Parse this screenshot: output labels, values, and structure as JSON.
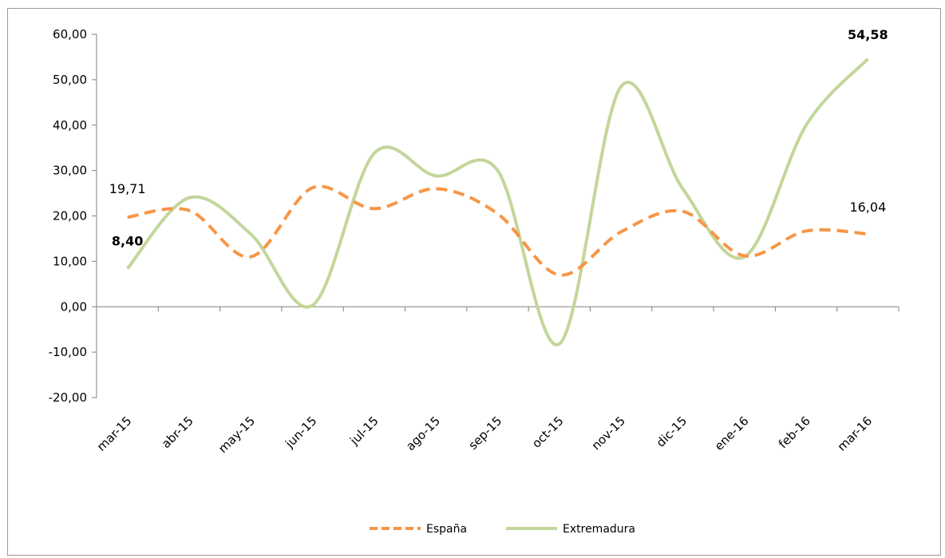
{
  "chart_data": {
    "type": "line",
    "title": "",
    "xlabel": "",
    "ylabel": "",
    "ylim": [
      -20,
      60
    ],
    "yticks": [
      "60,00",
      "50,00",
      "40,00",
      "30,00",
      "20,00",
      "10,00",
      "0,00",
      "-10,00",
      "-20,00"
    ],
    "ytick_values": [
      60,
      50,
      40,
      30,
      20,
      10,
      0,
      -10,
      -20
    ],
    "categories": [
      "mar-15",
      "abr-15",
      "may-15",
      "jun-15",
      "jul-15",
      "ago-15",
      "sep-15",
      "oct-15",
      "nov-15",
      "dic-15",
      "ene-16",
      "feb-16",
      "mar-16"
    ],
    "series": [
      {
        "name": "España",
        "color": "#F79646",
        "style": "dashed",
        "values": [
          19.71,
          21.2,
          11.0,
          26.2,
          21.6,
          26.0,
          20.5,
          7.0,
          16.5,
          21.0,
          11.2,
          16.7,
          16.04
        ]
      },
      {
        "name": "Extremadura",
        "color": "#C3D69B",
        "style": "solid",
        "values": [
          8.4,
          24.0,
          16.0,
          0.3,
          33.8,
          28.8,
          30.0,
          -8.2,
          48.5,
          26.0,
          11.0,
          40.0,
          54.58
        ]
      }
    ],
    "data_labels": [
      {
        "series": "España",
        "index": 0,
        "text": "19,71",
        "bold": false
      },
      {
        "series": "Extremadura",
        "index": 0,
        "text": "8,40",
        "bold": true
      },
      {
        "series": "España",
        "index": 12,
        "text": "16,04",
        "bold": false
      },
      {
        "series": "Extremadura",
        "index": 12,
        "text": "54,58",
        "bold": true
      }
    ],
    "grid": false,
    "legend_position": "bottom"
  }
}
